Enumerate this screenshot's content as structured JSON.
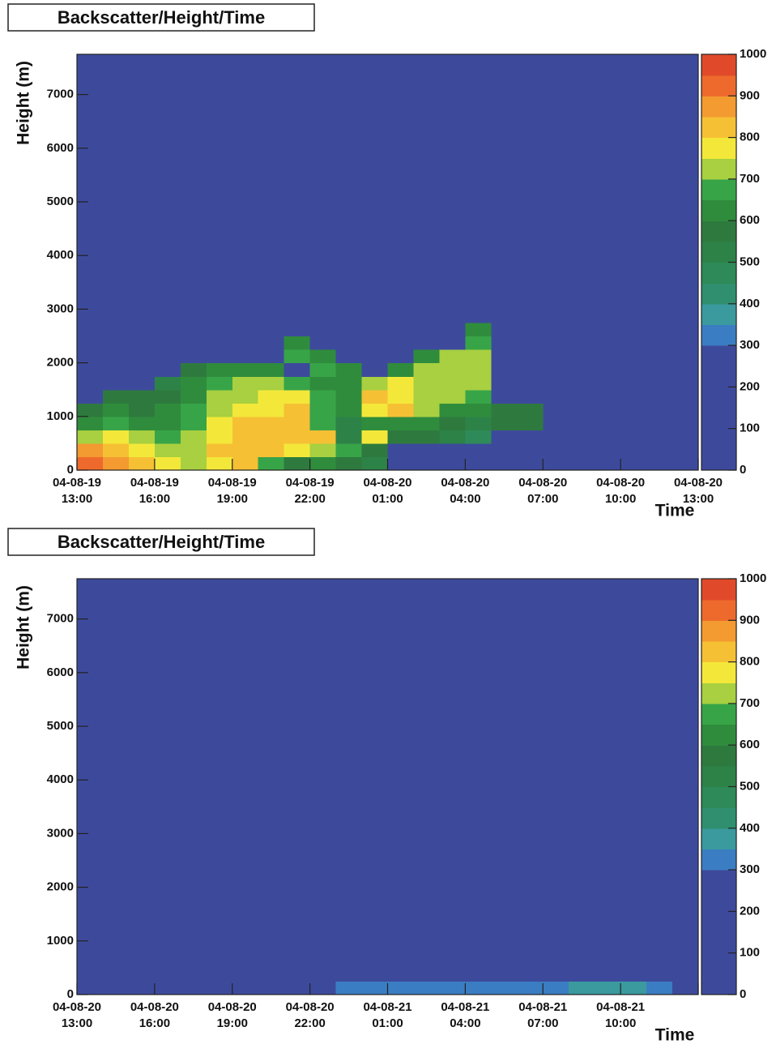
{
  "chart_data": [
    {
      "type": "heatmap",
      "title": "Backscatter/Height/Time",
      "ylabel": "Height (m)",
      "xlabel": "Time",
      "ylim": [
        0,
        7750
      ],
      "yticks": [
        0,
        1000,
        2000,
        3000,
        4000,
        5000,
        6000,
        7000
      ],
      "xticks": [
        {
          "date": "04-08-19",
          "time": "13:00"
        },
        {
          "date": "04-08-19",
          "time": "16:00"
        },
        {
          "date": "04-08-19",
          "time": "19:00"
        },
        {
          "date": "04-08-19",
          "time": "22:00"
        },
        {
          "date": "04-08-20",
          "time": "01:00"
        },
        {
          "date": "04-08-20",
          "time": "04:00"
        },
        {
          "date": "04-08-20",
          "time": "07:00"
        },
        {
          "date": "04-08-20",
          "time": "10:00"
        },
        {
          "date": "04-08-20",
          "time": "13:00"
        }
      ],
      "zlim": [
        0,
        1000
      ],
      "zticks": [
        0,
        100,
        200,
        300,
        400,
        500,
        600,
        700,
        800,
        900,
        1000
      ],
      "palette": [
        "#3d4a9c",
        "#3d4a9c",
        "#3d4a9c",
        "#3d4a9c",
        "#3d4a9c",
        "#3d4a9c",
        "#3b7dc2",
        "#3a9a9e",
        "#2f8f6e",
        "#2e8a58",
        "#2d8248",
        "#2e7a3e",
        "#2f8c3c",
        "#38a448",
        "#a8d040",
        "#f3e83a",
        "#f6c034",
        "#f39a30",
        "#ee6a2c",
        "#e04a2a"
      ],
      "y_edges": [
        0,
        250,
        500,
        750,
        1000,
        1250,
        1500,
        1750,
        2000,
        2250,
        2500,
        2750,
        7750
      ],
      "z": [
        [
          920,
          880,
          820,
          760,
          720,
          760,
          820,
          650,
          550,
          600,
          550,
          500,
          150,
          150,
          150,
          150,
          150,
          150,
          150,
          150,
          150,
          150,
          150,
          150
        ],
        [
          850,
          800,
          760,
          740,
          740,
          800,
          830,
          820,
          780,
          700,
          650,
          550,
          150,
          150,
          150,
          150,
          150,
          150,
          150,
          150,
          150,
          150,
          150,
          150
        ],
        [
          700,
          750,
          700,
          680,
          700,
          780,
          820,
          820,
          800,
          820,
          500,
          780,
          560,
          550,
          500,
          450,
          150,
          150,
          150,
          150,
          150,
          150,
          150,
          150
        ],
        [
          600,
          650,
          620,
          600,
          650,
          760,
          800,
          820,
          820,
          680,
          500,
          620,
          640,
          600,
          580,
          500,
          560,
          560,
          150,
          150,
          150,
          150,
          150,
          150
        ],
        [
          560,
          600,
          580,
          600,
          650,
          720,
          760,
          780,
          800,
          650,
          620,
          780,
          800,
          720,
          640,
          620,
          560,
          550,
          150,
          150,
          150,
          150,
          150,
          150
        ],
        [
          150,
          550,
          560,
          560,
          620,
          700,
          740,
          760,
          760,
          660,
          620,
          800,
          780,
          740,
          700,
          650,
          150,
          150,
          150,
          150,
          150,
          150,
          150,
          150
        ],
        [
          150,
          150,
          150,
          540,
          600,
          660,
          700,
          700,
          650,
          640,
          600,
          740,
          760,
          740,
          720,
          700,
          150,
          150,
          150,
          150,
          150,
          150,
          150,
          150
        ],
        [
          150,
          150,
          150,
          150,
          550,
          600,
          620,
          600,
          150,
          660,
          620,
          150,
          620,
          700,
          740,
          720,
          150,
          150,
          150,
          150,
          150,
          150,
          150,
          150
        ],
        [
          150,
          150,
          150,
          150,
          150,
          150,
          150,
          150,
          650,
          600,
          150,
          150,
          150,
          600,
          700,
          720,
          150,
          150,
          150,
          150,
          150,
          150,
          150,
          150
        ],
        [
          150,
          150,
          150,
          150,
          150,
          150,
          150,
          150,
          600,
          150,
          150,
          150,
          150,
          150,
          150,
          650,
          150,
          150,
          150,
          150,
          150,
          150,
          150,
          150
        ],
        [
          150,
          150,
          150,
          150,
          150,
          150,
          150,
          150,
          150,
          150,
          150,
          150,
          150,
          150,
          150,
          600,
          150,
          150,
          150,
          150,
          150,
          150,
          150,
          150
        ],
        [
          150,
          150,
          150,
          150,
          150,
          150,
          150,
          150,
          150,
          150,
          150,
          150,
          150,
          150,
          150,
          150,
          150,
          150,
          150,
          150,
          150,
          150,
          150,
          150
        ]
      ]
    },
    {
      "type": "heatmap",
      "title": "Backscatter/Height/Time",
      "ylabel": "Height (m)",
      "xlabel": "Time",
      "ylim": [
        0,
        7750
      ],
      "yticks": [
        0,
        1000,
        2000,
        3000,
        4000,
        5000,
        6000,
        7000
      ],
      "xticks": [
        {
          "date": "04-08-20",
          "time": "13:00"
        },
        {
          "date": "04-08-20",
          "time": "16:00"
        },
        {
          "date": "04-08-20",
          "time": "19:00"
        },
        {
          "date": "04-08-20",
          "time": "22:00"
        },
        {
          "date": "04-08-21",
          "time": "01:00"
        },
        {
          "date": "04-08-21",
          "time": "04:00"
        },
        {
          "date": "04-08-21",
          "time": "07:00"
        },
        {
          "date": "04-08-21",
          "time": "10:00"
        },
        null
      ],
      "zlim": [
        0,
        1000
      ],
      "zticks": [
        0,
        100,
        200,
        300,
        400,
        500,
        600,
        700,
        800,
        900,
        1000
      ],
      "palette": [
        "#3d4a9c",
        "#3d4a9c",
        "#3d4a9c",
        "#3d4a9c",
        "#3d4a9c",
        "#3d4a9c",
        "#3b7dc2",
        "#3a9a9e",
        "#2f8f6e",
        "#2e8a58",
        "#2d8248",
        "#2e7a3e",
        "#2f8c3c",
        "#38a448",
        "#a8d040",
        "#f3e83a",
        "#f6c034",
        "#f39a30",
        "#ee6a2c",
        "#e04a2a"
      ],
      "y_edges": [
        0,
        250,
        7750
      ],
      "z": [
        [
          150,
          150,
          150,
          150,
          150,
          150,
          150,
          150,
          150,
          150,
          320,
          320,
          320,
          320,
          320,
          320,
          320,
          320,
          340,
          360,
          360,
          360,
          340,
          150
        ],
        [
          150,
          150,
          150,
          150,
          150,
          150,
          150,
          150,
          150,
          150,
          150,
          150,
          150,
          150,
          150,
          150,
          150,
          150,
          150,
          150,
          150,
          150,
          150,
          150
        ]
      ]
    }
  ]
}
